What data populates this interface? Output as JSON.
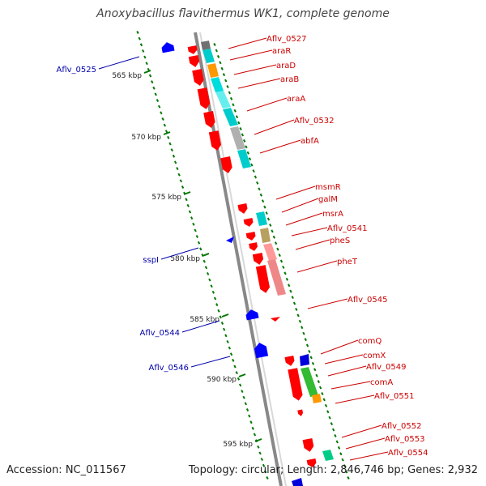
{
  "title": "Anoxybacillus flavithermus WK1, complete genome",
  "footer": {
    "accession": "Accession: NC_011567",
    "summary": "Topology: circular; Length: 2,846,746 bp; Genes: 2,932"
  },
  "colors": {
    "forward": "#ff0000",
    "reverse": "#0000ff",
    "label_forward": "#cc0000",
    "label_reverse": "#0000aa",
    "backbone": "#888888",
    "ruler": "#007700"
  },
  "scale_labels": [
    "565 kbp",
    "570 kbp",
    "575 kbp",
    "580 kbp",
    "585 kbp",
    "590 kbp",
    "595 kbp"
  ],
  "genes_forward": [
    "Aflv_0527",
    "araR",
    "araD",
    "araB",
    "araA",
    "Aflv_0532",
    "abfA",
    "msmR",
    "galM",
    "msrA",
    "Aflv_0541",
    "pheS",
    "pheT",
    "Aflv_0545",
    "comQ",
    "comX",
    "Aflv_0549",
    "comA",
    "Aflv_0551",
    "Aflv_0552",
    "Aflv_0553",
    "Aflv_0554"
  ],
  "genes_reverse": [
    "Aflv_0525",
    "sspI",
    "Aflv_0544",
    "Aflv_0546"
  ]
}
